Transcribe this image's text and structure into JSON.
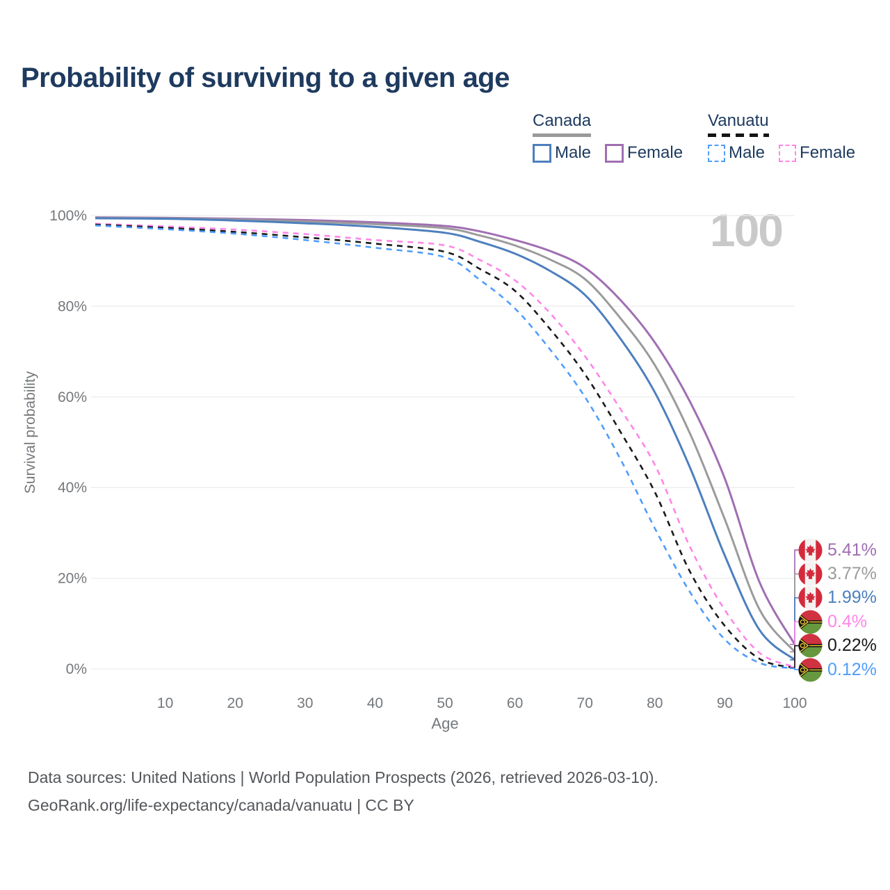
{
  "title": "Probability of surviving to a given age",
  "watermark": "100",
  "legend": {
    "groups": [
      {
        "country": "Canada",
        "line_style": "solid",
        "line_color": "#999999",
        "items": [
          {
            "label": "Male",
            "color": "#4d7fbe",
            "dashed": false
          },
          {
            "label": "Female",
            "color": "#a06eb2",
            "dashed": false
          }
        ]
      },
      {
        "country": "Vanuatu",
        "line_style": "dashed",
        "line_color": "#141414",
        "items": [
          {
            "label": "Male",
            "color": "#4f9dfc",
            "dashed": true
          },
          {
            "label": "Female",
            "color": "#ff85e8",
            "dashed": true
          }
        ]
      }
    ]
  },
  "chart_data": {
    "type": "line",
    "title": "Probability of surviving to a given age",
    "xlabel": "Age",
    "ylabel": "Survival probability",
    "xlim": [
      0,
      100
    ],
    "ylim": [
      0,
      100
    ],
    "grid": "horizontal",
    "legend_position": "top-right",
    "x_ticks": [
      10,
      20,
      30,
      40,
      50,
      60,
      70,
      80,
      90,
      100
    ],
    "y_ticks": [
      {
        "value": 0,
        "label": "0%"
      },
      {
        "value": 20,
        "label": "20%"
      },
      {
        "value": 40,
        "label": "40%"
      },
      {
        "value": 60,
        "label": "60%"
      },
      {
        "value": 80,
        "label": "80%"
      },
      {
        "value": 100,
        "label": "100%"
      }
    ],
    "ages": [
      0,
      10,
      20,
      30,
      40,
      50,
      55,
      60,
      65,
      70,
      75,
      80,
      85,
      90,
      95,
      100
    ],
    "series": [
      {
        "id": "canada-female",
        "name": "Canada Female",
        "country": "Canada",
        "flag": "canada",
        "color": "#a06eb2",
        "line": "solid",
        "end_label": "5.41%",
        "values": [
          99.6,
          99.5,
          99.3,
          99.0,
          98.5,
          97.7,
          96.5,
          94.6,
          92.2,
          88.5,
          81.5,
          72,
          59,
          42,
          19,
          5.41
        ]
      },
      {
        "id": "canada-both",
        "name": "Canada Both sexes",
        "country": "Canada",
        "flag": "canada",
        "color": "#9b9b9b",
        "line": "solid",
        "end_label": "3.77%",
        "values": [
          99.5,
          99.4,
          99.1,
          98.7,
          98.1,
          97.2,
          95.6,
          93.4,
          90.3,
          86,
          77.5,
          67,
          52,
          33,
          13,
          3.77
        ]
      },
      {
        "id": "canada-male",
        "name": "Canada Male",
        "country": "Canada",
        "flag": "canada",
        "color": "#4d7fbe",
        "line": "solid",
        "end_label": "1.99%",
        "values": [
          99.4,
          99.3,
          98.9,
          98.3,
          97.5,
          96.2,
          94.2,
          91.6,
          87.8,
          82.5,
          73,
          61,
          44.5,
          25,
          8.5,
          1.99
        ]
      },
      {
        "id": "vanuatu-female",
        "name": "Vanuatu Female",
        "country": "Vanuatu",
        "flag": "vanuatu",
        "color": "#ff85e8",
        "line": "dashed",
        "end_label": "0.4%",
        "values": [
          98.2,
          97.6,
          96.9,
          95.9,
          94.6,
          93.4,
          90.2,
          85.7,
          78.5,
          69,
          57.5,
          45,
          27,
          13,
          3.5,
          0.4
        ]
      },
      {
        "id": "vanuatu-both",
        "name": "Vanuatu Both sexes",
        "country": "Vanuatu",
        "flag": "vanuatu",
        "color": "#1a1a1a",
        "line": "dashed",
        "end_label": "0.22%",
        "values": [
          98.0,
          97.3,
          96.4,
          95.2,
          93.8,
          92.0,
          88.2,
          83.4,
          75,
          65,
          52.5,
          39,
          21.5,
          9.5,
          2.2,
          0.22
        ]
      },
      {
        "id": "vanuatu-male",
        "name": "Vanuatu Male",
        "country": "Vanuatu",
        "flag": "vanuatu",
        "color": "#4f9dfc",
        "line": "dashed",
        "end_label": "0.12%",
        "values": [
          97.8,
          97.0,
          96.0,
          94.6,
          92.9,
          90.8,
          85.8,
          79.5,
          70.5,
          60,
          46.5,
          31,
          17,
          6.5,
          1.3,
          0.12
        ]
      }
    ]
  },
  "footer": {
    "line1": "Data sources: United Nations | World Population Prospects (2026, retrieved 2026-03-10).",
    "line2": "GeoRank.org/life-expectancy/canada/vanuatu | CC BY"
  }
}
